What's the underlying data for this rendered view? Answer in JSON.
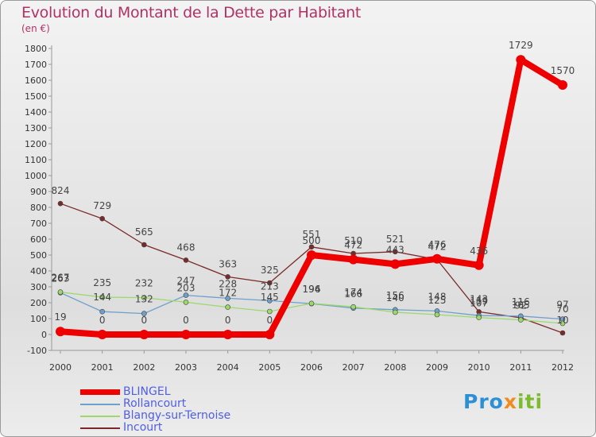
{
  "header": {
    "title": "Evolution du Montant de la Dette par Habitant",
    "subtitle": "(en €)"
  },
  "logo": {
    "part1": "Pro",
    "part2": "x",
    "part3": "iti"
  },
  "chart_data": {
    "type": "line",
    "x": [
      "2000",
      "2001",
      "2002",
      "2003",
      "2004",
      "2005",
      "2006",
      "2007",
      "2008",
      "2009",
      "2010",
      "2011",
      "2012"
    ],
    "ylim": [
      -100,
      1800
    ],
    "yticks": [
      -100,
      0,
      100,
      200,
      300,
      400,
      500,
      600,
      700,
      800,
      900,
      1000,
      1100,
      1200,
      1300,
      1400,
      1500,
      1600,
      1700,
      1800
    ],
    "grid": false,
    "legend_position": "bottom-left",
    "series": [
      {
        "name": "BLINGEL",
        "color": "#ee0000",
        "values": [
          19,
          0,
          0,
          0,
          0,
          0,
          500,
          472,
          443,
          476,
          436,
          1729,
          1570
        ],
        "labels": [
          "19",
          "0",
          "0",
          "0",
          "0",
          "0",
          "500",
          "472",
          "443",
          "476",
          "436",
          "1729",
          "1570"
        ]
      },
      {
        "name": "Rollancourt",
        "color": "#6fa0cc",
        "values": [
          263,
          144,
          132,
          247,
          228,
          213,
          194,
          166,
          156,
          148,
          119,
          116,
          97
        ],
        "labels": [
          "263",
          "144",
          "132",
          "247",
          "228",
          "213",
          "194",
          "166",
          "156",
          "148",
          "119",
          "116",
          "97"
        ]
      },
      {
        "name": "Blangy-sur-Ternoise",
        "color": "#9bd96b",
        "values": [
          267,
          235,
          232,
          203,
          172,
          145,
          196,
          174,
          140,
          125,
          107,
          92,
          70
        ],
        "labels": [
          "267",
          "235",
          "232",
          "203",
          "172",
          "145",
          "196",
          "174",
          "140",
          "125",
          "107",
          "92",
          "70"
        ]
      },
      {
        "name": "Incourt",
        "color": "#7a2a2a",
        "values": [
          824,
          729,
          565,
          468,
          363,
          325,
          551,
          510,
          521,
          472,
          143,
          105,
          10
        ],
        "labels": [
          "824",
          "729",
          "565",
          "468",
          "363",
          "325",
          "551",
          "510",
          "521",
          "472",
          "143",
          "105",
          "10"
        ]
      }
    ]
  }
}
